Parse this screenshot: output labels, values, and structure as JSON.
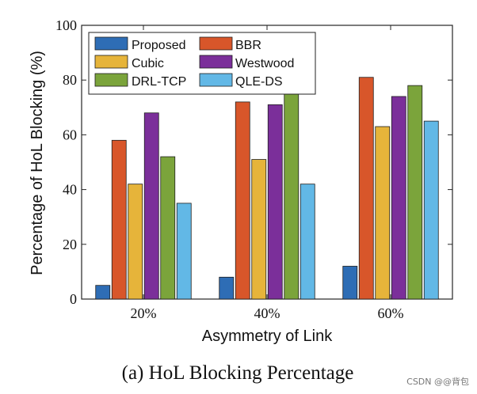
{
  "chart_data": {
    "type": "bar",
    "categories": [
      "20%",
      "40%",
      "60%"
    ],
    "series": [
      {
        "name": "Proposed",
        "values": [
          5,
          8,
          12
        ],
        "color": "#2e6db5"
      },
      {
        "name": "BBR",
        "values": [
          58,
          72,
          81
        ],
        "color": "#d8562a"
      },
      {
        "name": "Cubic",
        "values": [
          42,
          51,
          63
        ],
        "color": "#e6b43a"
      },
      {
        "name": "Westwood",
        "values": [
          68,
          71,
          74
        ],
        "color": "#7b2f9a"
      },
      {
        "name": "DRL-TCP",
        "values": [
          52,
          75,
          78
        ],
        "color": "#7ba43b"
      },
      {
        "name": "QLE-DS",
        "values": [
          35,
          42,
          65
        ],
        "color": "#62b8e6"
      }
    ],
    "title": "",
    "xlabel": "Asymmetry of Link",
    "ylabel": "Percentage of HoL Blocking (%)",
    "ylim": [
      0,
      100
    ],
    "yticks": [
      0,
      20,
      40,
      60,
      80,
      100
    ],
    "grid": false,
    "legend_position": "top-left"
  },
  "caption": "(a) HoL Blocking Percentage",
  "watermark": "CSDN @@背包"
}
